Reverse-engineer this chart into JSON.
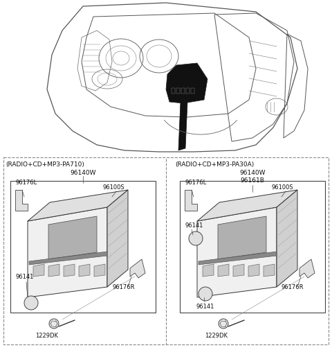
{
  "bg_color": "#ffffff",
  "fig_width": 4.8,
  "fig_height": 5.06,
  "dpi": 100,
  "left_label": "(RADIO+CD+MP3-PA710)",
  "left_part": "96140W",
  "right_label": "(RADIO+CD+MP3-PA30A)",
  "right_part1": "96140W",
  "right_part2": "96161B",
  "part_96176L": "96176L",
  "part_96100S": "96100S",
  "part_96141": "96141",
  "part_96176R": "96176R",
  "part_1229DK": "1229DK"
}
